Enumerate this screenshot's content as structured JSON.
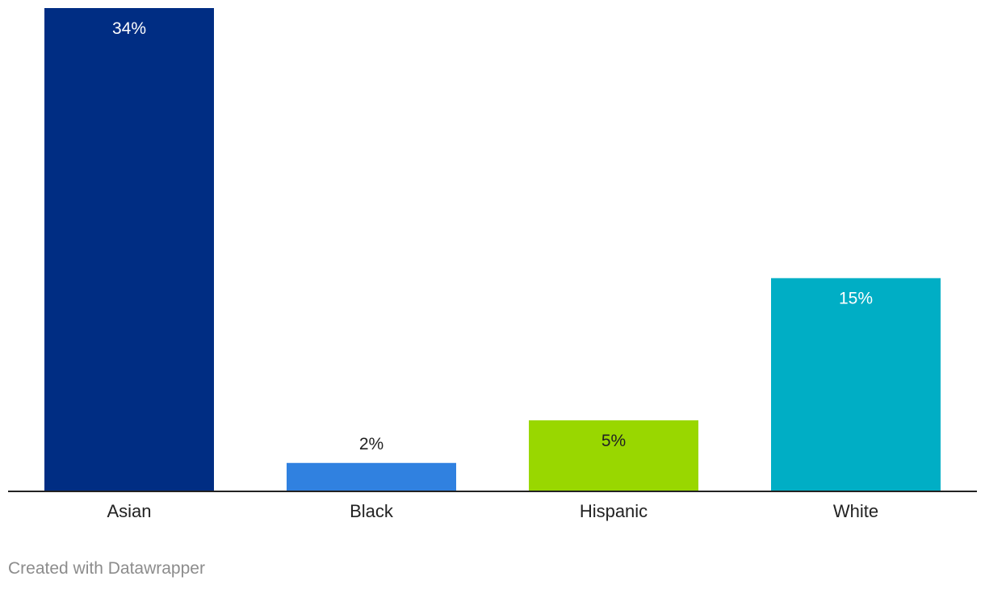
{
  "chart_data": {
    "type": "bar",
    "categories": [
      "Asian",
      "Black",
      "Hispanic",
      "White"
    ],
    "values": [
      34,
      2,
      5,
      15
    ],
    "value_labels": [
      "34%",
      "2%",
      "5%",
      "15%"
    ],
    "colors": [
      "#002d83",
      "#3081e0",
      "#99d700",
      "#00aec5"
    ],
    "label_colors": [
      "#ffffff",
      "#222222",
      "#222222",
      "#ffffff"
    ],
    "label_inside": [
      true,
      false,
      true,
      true
    ],
    "ylim": [
      0,
      34
    ],
    "grid": false,
    "axis_color": "#222222",
    "tick_label_color": "#222222"
  },
  "footer": {
    "credit": "Created with Datawrapper"
  }
}
